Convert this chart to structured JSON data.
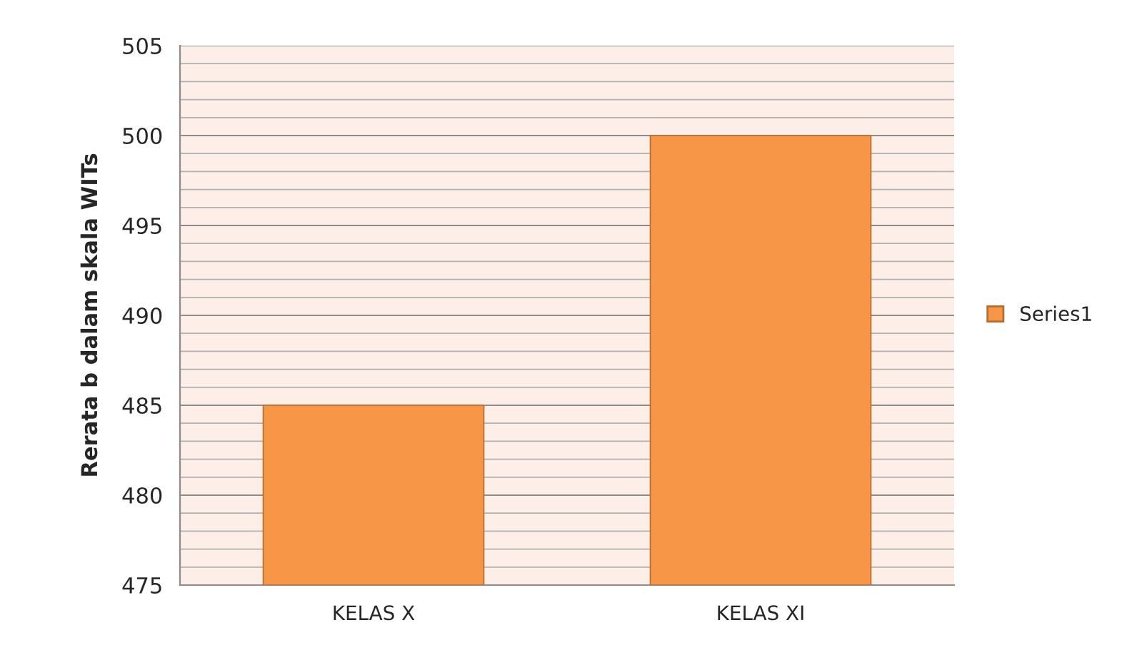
{
  "chart_data": {
    "type": "bar",
    "ylabel": "Rerata b dalam skala WITs",
    "categories": [
      "KELAS X",
      "KELAS XI"
    ],
    "series": [
      {
        "name": "Series1",
        "color": "#f79646",
        "values": [
          485,
          500
        ]
      }
    ],
    "ylim": [
      475,
      505
    ],
    "yticks": [
      475,
      480,
      485,
      490,
      495,
      500,
      505
    ],
    "grid": "y",
    "legend": "right"
  }
}
